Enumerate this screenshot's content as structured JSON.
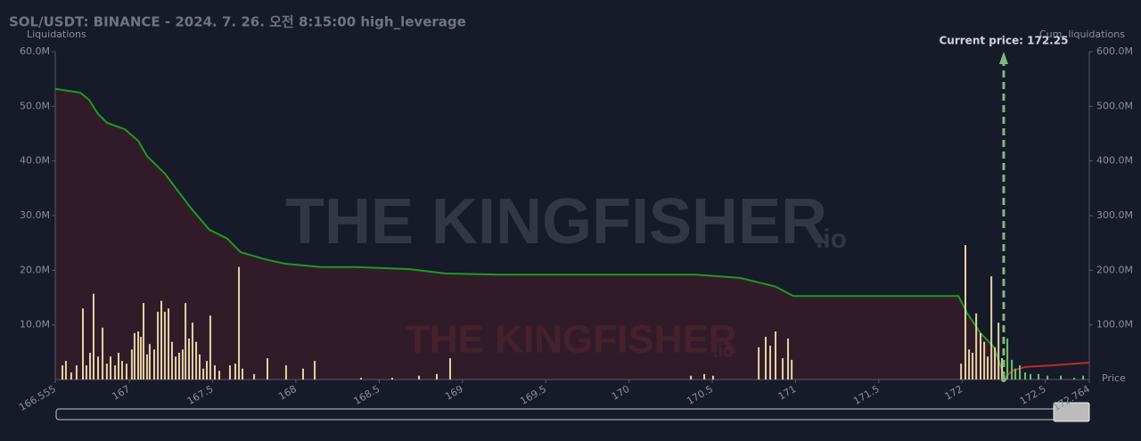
{
  "chart_data": {
    "type": "bar",
    "title": "SOL/USDT: BINANCE - 2024. 7. 26. 오전 8:15:00 high_leverage",
    "ylabel": "Liquidations",
    "y2label": "Cum. liquidations",
    "xlabel": "Price",
    "watermark": [
      "THE KINGFISHER",
      ".io"
    ],
    "xlim": [
      166.555,
      172.764
    ],
    "xticks": [
      166.555,
      167,
      167.5,
      168,
      168.5,
      169,
      169.5,
      170,
      170.5,
      171,
      171.5,
      172,
      172.5,
      172.764
    ],
    "ylim": [
      0,
      60000000
    ],
    "yticks": [
      {
        "value": 10000000,
        "label": "10.0M"
      },
      {
        "value": 20000000,
        "label": "20.0M"
      },
      {
        "value": 30000000,
        "label": "30.0M"
      },
      {
        "value": 40000000,
        "label": "40.0M"
      },
      {
        "value": 50000000,
        "label": "50.0M"
      },
      {
        "value": 60000000,
        "label": "60.0M"
      }
    ],
    "y2lim": [
      0,
      600000000
    ],
    "y2ticks": [
      {
        "value": 100000000,
        "label": "100.0M"
      },
      {
        "value": 200000000,
        "label": "200.0M"
      },
      {
        "value": 300000000,
        "label": "300.0M"
      },
      {
        "value": 400000000,
        "label": "400.0M"
      },
      {
        "value": 500000000,
        "label": "500.0M"
      },
      {
        "value": 600000000,
        "label": "600.0M"
      }
    ],
    "grid": false,
    "annotation": {
      "text": "Current price: 172.25",
      "x": 172.25,
      "color": "#7fb77e"
    },
    "series": [
      {
        "type": "line",
        "axis": "y2",
        "color": "#1f9a1f",
        "fill": "#4a1e2a",
        "x": [
          166.555,
          166.705,
          166.758,
          166.812,
          166.865,
          166.973,
          167.053,
          167.106,
          167.213,
          167.294,
          167.374,
          167.481,
          167.588,
          167.668,
          167.829,
          167.936,
          168.15,
          168.364,
          168.685,
          168.9,
          169.221,
          170.398,
          170.666,
          170.88,
          170.987,
          171.978,
          172.031,
          172.111,
          172.192,
          172.24,
          172.25
        ],
        "values": [
          532000000,
          525000000,
          512000000,
          486000000,
          470000000,
          458000000,
          437000000,
          409000000,
          377000000,
          344000000,
          312000000,
          274000000,
          258000000,
          233000000,
          219000000,
          212000000,
          206000000,
          206000000,
          202000000,
          194000000,
          192000000,
          192000000,
          186000000,
          170000000,
          153000000,
          153000000,
          121000000,
          85000000,
          59000000,
          18000000,
          0
        ]
      },
      {
        "type": "line",
        "axis": "y2",
        "color": "#c0282a",
        "x": [
          172.25,
          172.299,
          172.379,
          172.54,
          172.764
        ],
        "values": [
          0,
          16000000,
          23000000,
          26000000,
          31000000
        ]
      },
      {
        "type": "bar",
        "color": "#e3d3a3",
        "x": [
          166.598,
          166.619,
          166.651,
          166.683,
          166.721,
          166.742,
          166.764,
          166.785,
          166.812,
          166.839,
          166.865,
          166.887,
          166.914,
          166.935,
          166.956,
          166.983,
          167.015,
          167.031,
          167.053,
          167.069,
          167.085,
          167.106,
          167.122,
          167.149,
          167.171,
          167.192,
          167.213,
          167.235,
          167.256,
          167.278,
          167.299,
          167.32,
          167.337,
          167.358,
          167.379,
          167.401,
          167.422,
          167.444,
          167.465,
          167.486,
          167.513,
          167.54,
          167.604,
          167.636,
          167.658,
          167.679,
          167.749,
          167.829,
          167.941,
          168.043,
          168.113,
          168.391,
          168.578,
          168.739,
          168.846,
          168.926,
          170.372,
          170.452,
          170.505,
          170.779,
          170.821,
          170.848,
          170.88,
          170.923,
          170.955,
          170.977,
          171.994,
          172.02,
          172.042,
          172.063,
          172.085,
          172.111,
          172.133,
          172.154,
          172.176,
          172.197,
          172.219,
          172.24
        ],
        "values": [
          2600000,
          3400000,
          1300000,
          2600000,
          13000000,
          2600000,
          4900000,
          15700000,
          4200000,
          9500000,
          2900000,
          4200000,
          2600000,
          4900000,
          3400000,
          2900000,
          5500000,
          8500000,
          8800000,
          7800000,
          14000000,
          4600000,
          6500000,
          5500000,
          12400000,
          14400000,
          12400000,
          13000000,
          6900000,
          4200000,
          4900000,
          5500000,
          14000000,
          7500000,
          10400000,
          6900000,
          4600000,
          2000000,
          3400000,
          11700000,
          2600000,
          1600000,
          2600000,
          2900000,
          20600000,
          2000000,
          1000000,
          3900000,
          2600000,
          2000000,
          3400000,
          300000,
          300000,
          700000,
          1000000,
          3900000,
          700000,
          1000000,
          700000,
          5900000,
          7800000,
          6200000,
          8800000,
          3900000,
          7500000,
          3600000,
          2900000,
          24600000,
          5500000,
          4900000,
          12100000,
          8500000,
          6900000,
          4200000,
          18900000,
          5900000,
          10400000,
          3900000
        ]
      },
      {
        "type": "bar",
        "color": "#6cc46c",
        "x": [
          172.272,
          172.299,
          172.32,
          172.347,
          172.379,
          172.411,
          172.459,
          172.513,
          172.593,
          172.673,
          172.727
        ],
        "values": [
          7500000,
          3600000,
          2000000,
          2600000,
          1300000,
          1000000,
          1000000,
          700000,
          700000,
          300000,
          700000
        ]
      }
    ]
  }
}
